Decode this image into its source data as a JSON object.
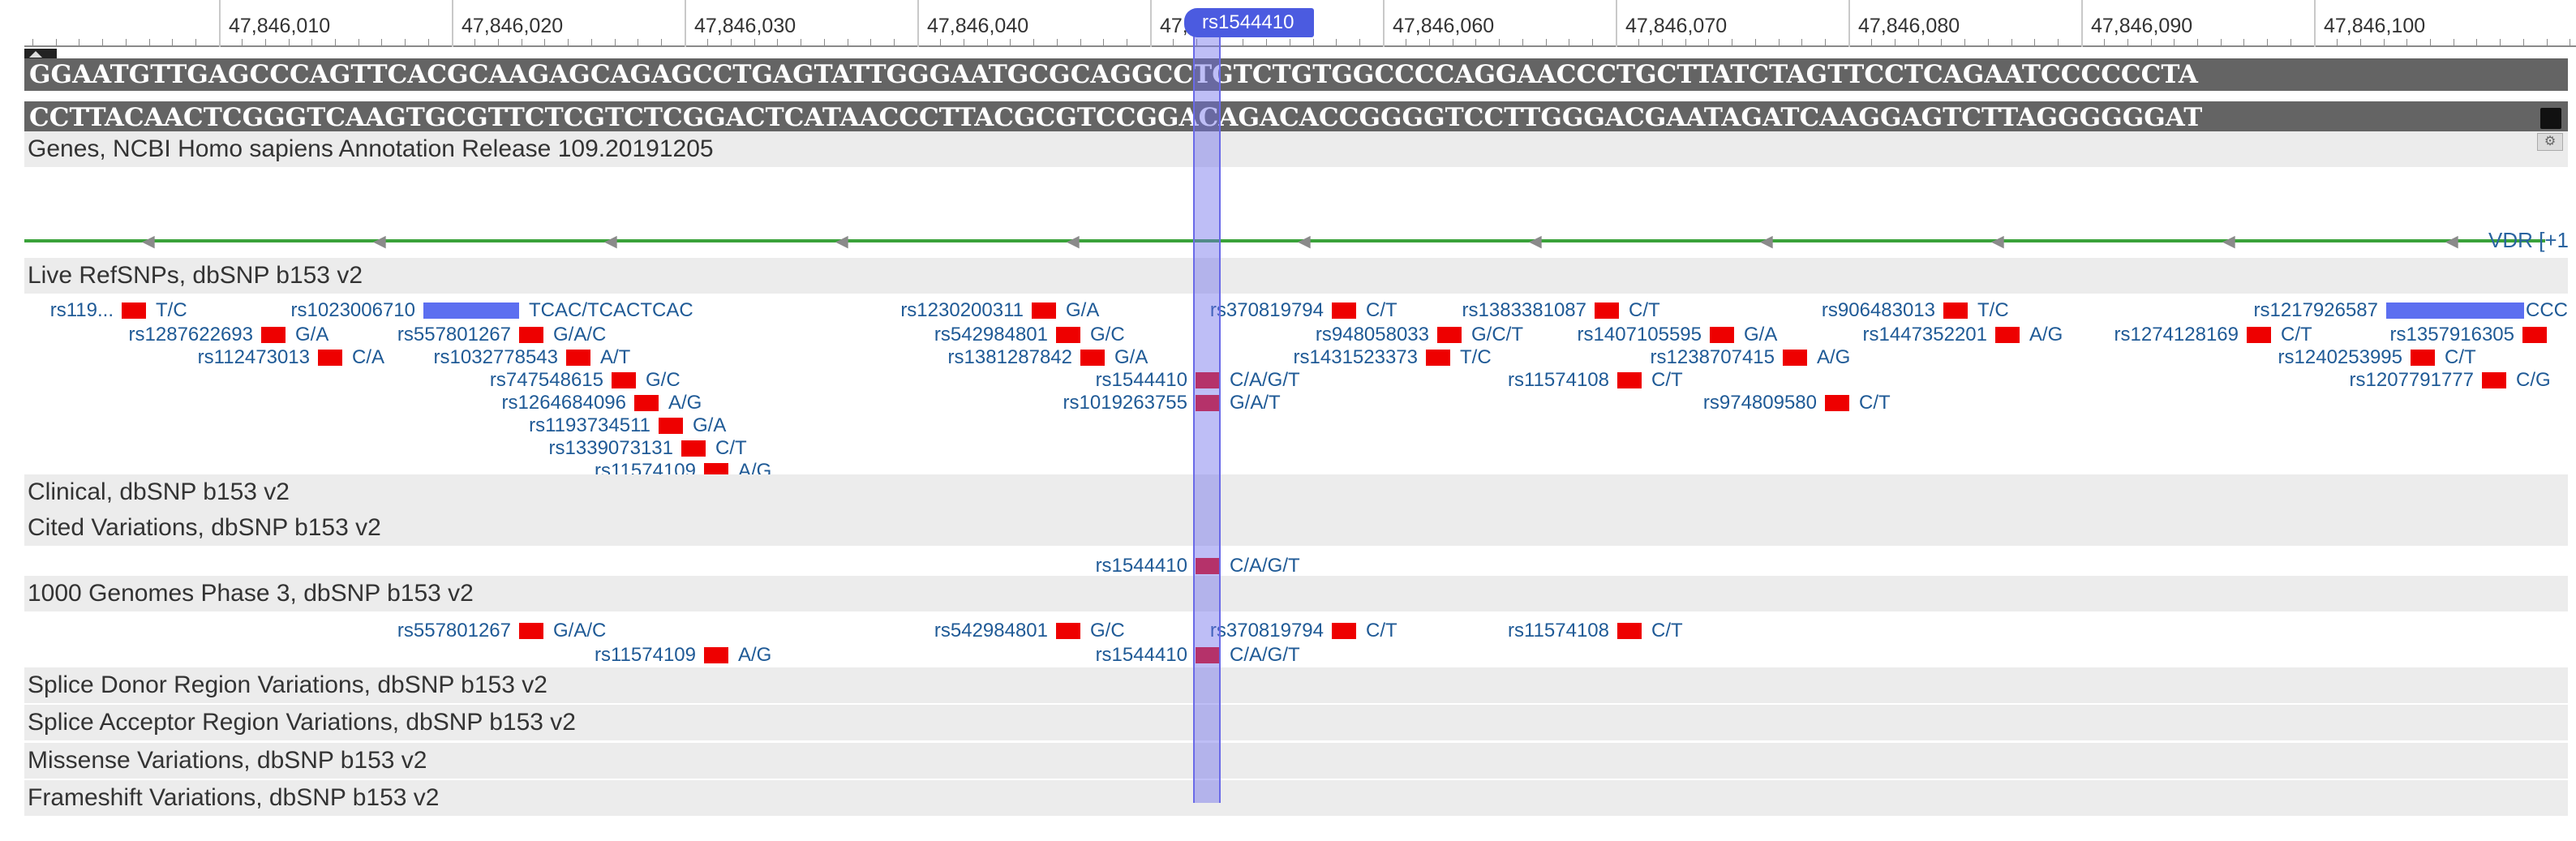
{
  "ruler": {
    "ticks": [
      "47,846,010",
      "47,846,020",
      "47,846,030",
      "47,846,040",
      "47,846,050",
      "47,846,060",
      "47,846,070",
      "47,846,080",
      "47,846,090",
      "47,846,100"
    ],
    "partial_tick": "47,"
  },
  "sequence": {
    "forward": "GGAATGTTGAGCCCAGTTCACGCAAGAGCAGAGCCTGAGTATTGGGAATGCGCAGGCCTGTCTGTGGCCCCAGGAACCCTGCTTATCTAGTTCCTCAGAATCCCCCCTA",
    "reverse": "CCTTACAACTCGGGTCAAGTGCGTTCTCGTCTCGGACTCATAACCCTTACGCGTCCGGACAGACACCGGGGTCCTTGGGACGAATAGATCAAGGAGTCTTAGGGGGGAT"
  },
  "selection": {
    "label": "rs1544410"
  },
  "tracks": {
    "genes": {
      "title": "Genes, NCBI Homo sapiens Annotation Release 109.20191205",
      "gene_label": "VDR [+1"
    },
    "live_refsnps": {
      "title": "Live RefSNPs, dbSNP b153 v2"
    },
    "clinical": {
      "title": "Clinical, dbSNP b153 v2"
    },
    "cited": {
      "title": "Cited Variations, dbSNP b153 v2"
    },
    "g1000": {
      "title": "1000 Genomes Phase 3, dbSNP b153 v2"
    },
    "splice_donor": {
      "title": "Splice Donor Region Variations, dbSNP b153 v2"
    },
    "splice_acceptor": {
      "title": "Splice Acceptor Region Variations, dbSNP b153 v2"
    },
    "missense": {
      "title": "Missense Variations, dbSNP b153 v2"
    },
    "frameshift": {
      "title": "Frameshift Variations, dbSNP b153 v2"
    }
  },
  "live_snps": [
    {
      "id": "rs119...",
      "allele": "T/C"
    },
    {
      "id": "rs1023006710",
      "allele": "TCAC/TCACTCAC"
    },
    {
      "id": "rs1230200311",
      "allele": "G/A"
    },
    {
      "id": "rs370819794",
      "allele": "C/T"
    },
    {
      "id": "rs1383381087",
      "allele": "C/T"
    },
    {
      "id": "rs906483013",
      "allele": "T/C"
    },
    {
      "id": "rs1217926587",
      "allele": "CCC"
    },
    {
      "id": "rs1287622693",
      "allele": "G/A"
    },
    {
      "id": "rs557801267",
      "allele": "G/A/C"
    },
    {
      "id": "rs542984801",
      "allele": "G/C"
    },
    {
      "id": "rs948058033",
      "allele": "G/C/T"
    },
    {
      "id": "rs1407105595",
      "allele": "G/A"
    },
    {
      "id": "rs1447352201",
      "allele": "A/G"
    },
    {
      "id": "rs1274128169",
      "allele": "C/T"
    },
    {
      "id": "rs1357916305",
      "allele": ""
    },
    {
      "id": "rs112473013",
      "allele": "C/A"
    },
    {
      "id": "rs1032778543",
      "allele": "A/T"
    },
    {
      "id": "rs1381287842",
      "allele": "G/A"
    },
    {
      "id": "rs1431523373",
      "allele": "T/C"
    },
    {
      "id": "rs1238707415",
      "allele": "A/G"
    },
    {
      "id": "rs1240253995",
      "allele": "C/T"
    },
    {
      "id": "rs747548615",
      "allele": "G/C"
    },
    {
      "id": "rs1544410",
      "allele": "C/A/G/T"
    },
    {
      "id": "rs11574108",
      "allele": "C/T"
    },
    {
      "id": "rs1207791777",
      "allele": "C/G"
    },
    {
      "id": "rs1264684096",
      "allele": "A/G"
    },
    {
      "id": "rs1019263755",
      "allele": "G/A/T"
    },
    {
      "id": "rs974809580",
      "allele": "C/T"
    },
    {
      "id": "rs1193734511",
      "allele": "G/A"
    },
    {
      "id": "rs1339073131",
      "allele": "C/T"
    },
    {
      "id": "rs11574109",
      "allele": "A/G"
    }
  ],
  "cited_snps": [
    {
      "id": "rs1544410",
      "allele": "C/A/G/T"
    }
  ],
  "g1000_snps": [
    {
      "id": "rs557801267",
      "allele": "G/A/C"
    },
    {
      "id": "rs542984801",
      "allele": "G/C"
    },
    {
      "id": "rs370819794",
      "allele": "C/T"
    },
    {
      "id": "rs11574108",
      "allele": "C/T"
    },
    {
      "id": "rs11574109",
      "allele": "A/G"
    },
    {
      "id": "rs1544410",
      "allele": "C/A/G/T"
    }
  ]
}
